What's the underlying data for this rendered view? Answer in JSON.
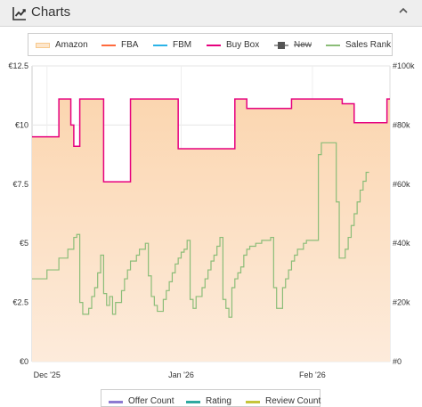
{
  "header": {
    "title": "Charts",
    "icon": "chart-line-icon",
    "collapse_icon": "chevron-up-icon"
  },
  "legend": [
    {
      "label": "Amazon",
      "color": "#f7c98d",
      "style": "area"
    },
    {
      "label": "FBA",
      "color": "#ff6a3d",
      "style": "line"
    },
    {
      "label": "FBM",
      "color": "#2bb3e8",
      "style": "line"
    },
    {
      "label": "Buy Box",
      "color": "#e6007e",
      "style": "line"
    },
    {
      "label": "New",
      "color": "#555555",
      "style": "square-line",
      "disabled": true
    },
    {
      "label": "Sales Rank",
      "color": "#8bbd78",
      "style": "line"
    }
  ],
  "bottom_legend": [
    {
      "label": "Offer Count",
      "color": "#8d7ad1"
    },
    {
      "label": "Rating",
      "color": "#2ea9a0"
    },
    {
      "label": "Review Count",
      "color": "#c5c53a"
    }
  ],
  "chart_data": {
    "type": "line",
    "x_tick_labels": [
      "Dec '25",
      "Jan '26",
      "Feb '26"
    ],
    "y_left": {
      "ticks": [
        "€0",
        "€2.5",
        "€5",
        "€7.5",
        "€10",
        "€12.5"
      ],
      "lim": [
        0,
        12.5
      ]
    },
    "y_right": {
      "ticks": [
        "#0",
        "#20k",
        "#40k",
        "#60k",
        "#80k",
        "#100k"
      ],
      "lim": [
        0,
        100000
      ]
    },
    "x_range_days": [
      0,
      120
    ],
    "series": [
      {
        "name": "Buy Box",
        "color": "#e6007e",
        "axis": "left",
        "fill": "#fde2c8",
        "points": [
          [
            0,
            9.5
          ],
          [
            9,
            9.5
          ],
          [
            9,
            11.1
          ],
          [
            13,
            11.1
          ],
          [
            13,
            10.0
          ],
          [
            14,
            10.0
          ],
          [
            14,
            9.1
          ],
          [
            16,
            9.1
          ],
          [
            16,
            11.1
          ],
          [
            24,
            11.1
          ],
          [
            24,
            7.6
          ],
          [
            33,
            7.6
          ],
          [
            33,
            11.1
          ],
          [
            49,
            11.1
          ],
          [
            49,
            9.0
          ],
          [
            68,
            9.0
          ],
          [
            68,
            11.1
          ],
          [
            72,
            11.1
          ],
          [
            72,
            10.7
          ],
          [
            87,
            10.7
          ],
          [
            87,
            11.1
          ],
          [
            104,
            11.1
          ],
          [
            104,
            10.9
          ],
          [
            108,
            10.9
          ],
          [
            108,
            10.1
          ],
          [
            119,
            10.1
          ],
          [
            119,
            11.1
          ],
          [
            120,
            11.1
          ]
        ]
      },
      {
        "name": "Sales Rank",
        "color": "#8bbd78",
        "axis": "right",
        "points": [
          [
            0,
            28000
          ],
          [
            5,
            28000
          ],
          [
            5,
            31000
          ],
          [
            9,
            31000
          ],
          [
            9,
            35000
          ],
          [
            12,
            35000
          ],
          [
            12,
            38000
          ],
          [
            14,
            38000
          ],
          [
            14,
            42000
          ],
          [
            15,
            42000
          ],
          [
            15,
            43000
          ],
          [
            16,
            43000
          ],
          [
            16,
            20000
          ],
          [
            17,
            20000
          ],
          [
            17,
            16000
          ],
          [
            19,
            16000
          ],
          [
            19,
            18000
          ],
          [
            20,
            18000
          ],
          [
            20,
            22000
          ],
          [
            21,
            22000
          ],
          [
            21,
            25000
          ],
          [
            22,
            25000
          ],
          [
            22,
            30000
          ],
          [
            23,
            30000
          ],
          [
            23,
            36000
          ],
          [
            24,
            36000
          ],
          [
            24,
            23000
          ],
          [
            25,
            23000
          ],
          [
            25,
            19000
          ],
          [
            26,
            19000
          ],
          [
            26,
            22000
          ],
          [
            27,
            22000
          ],
          [
            27,
            16000
          ],
          [
            28,
            16000
          ],
          [
            28,
            20000
          ],
          [
            30,
            20000
          ],
          [
            30,
            24000
          ],
          [
            31,
            24000
          ],
          [
            31,
            28000
          ],
          [
            32,
            28000
          ],
          [
            32,
            31000
          ],
          [
            33,
            31000
          ],
          [
            33,
            34000
          ],
          [
            35,
            34000
          ],
          [
            35,
            36000
          ],
          [
            36,
            36000
          ],
          [
            36,
            38000
          ],
          [
            38,
            38000
          ],
          [
            38,
            40000
          ],
          [
            39,
            40000
          ],
          [
            39,
            29000
          ],
          [
            40,
            29000
          ],
          [
            40,
            22000
          ],
          [
            41,
            22000
          ],
          [
            41,
            19000
          ],
          [
            42,
            19000
          ],
          [
            42,
            17000
          ],
          [
            44,
            17000
          ],
          [
            44,
            21000
          ],
          [
            45,
            21000
          ],
          [
            45,
            24000
          ],
          [
            46,
            24000
          ],
          [
            46,
            27000
          ],
          [
            47,
            27000
          ],
          [
            47,
            30000
          ],
          [
            48,
            30000
          ],
          [
            48,
            33000
          ],
          [
            49,
            33000
          ],
          [
            49,
            35000
          ],
          [
            50,
            35000
          ],
          [
            50,
            37000
          ],
          [
            51,
            37000
          ],
          [
            51,
            38000
          ],
          [
            52,
            38000
          ],
          [
            52,
            41000
          ],
          [
            53,
            41000
          ],
          [
            53,
            21000
          ],
          [
            54,
            21000
          ],
          [
            54,
            18000
          ],
          [
            55,
            18000
          ],
          [
            55,
            22000
          ],
          [
            57,
            22000
          ],
          [
            57,
            25000
          ],
          [
            58,
            25000
          ],
          [
            58,
            28000
          ],
          [
            59,
            28000
          ],
          [
            59,
            31000
          ],
          [
            60,
            31000
          ],
          [
            60,
            34000
          ],
          [
            61,
            34000
          ],
          [
            61,
            36000
          ],
          [
            62,
            36000
          ],
          [
            62,
            39000
          ],
          [
            63,
            39000
          ],
          [
            63,
            42000
          ],
          [
            64,
            42000
          ],
          [
            64,
            21000
          ],
          [
            65,
            21000
          ],
          [
            65,
            18000
          ],
          [
            66,
            18000
          ],
          [
            66,
            15000
          ],
          [
            67,
            15000
          ],
          [
            67,
            25000
          ],
          [
            68,
            25000
          ],
          [
            68,
            28000
          ],
          [
            69,
            28000
          ],
          [
            69,
            30000
          ],
          [
            70,
            30000
          ],
          [
            70,
            32000
          ],
          [
            71,
            32000
          ],
          [
            71,
            36000
          ],
          [
            72,
            36000
          ],
          [
            72,
            38000
          ],
          [
            73,
            38000
          ],
          [
            73,
            39000
          ],
          [
            75,
            39000
          ],
          [
            75,
            40000
          ],
          [
            77,
            40000
          ],
          [
            77,
            41000
          ],
          [
            80,
            41000
          ],
          [
            80,
            42000
          ],
          [
            81,
            42000
          ],
          [
            81,
            25000
          ],
          [
            82,
            25000
          ],
          [
            82,
            18000
          ],
          [
            84,
            18000
          ],
          [
            84,
            25000
          ],
          [
            85,
            25000
          ],
          [
            85,
            28000
          ],
          [
            86,
            28000
          ],
          [
            86,
            31000
          ],
          [
            87,
            31000
          ],
          [
            87,
            34000
          ],
          [
            88,
            34000
          ],
          [
            88,
            36000
          ],
          [
            89,
            36000
          ],
          [
            89,
            38000
          ],
          [
            91,
            38000
          ],
          [
            91,
            40000
          ],
          [
            92,
            40000
          ],
          [
            92,
            41000
          ],
          [
            96,
            41000
          ],
          [
            96,
            70000
          ],
          [
            97,
            70000
          ],
          [
            97,
            74000
          ],
          [
            102,
            74000
          ],
          [
            102,
            54000
          ],
          [
            103,
            54000
          ],
          [
            103,
            35000
          ],
          [
            105,
            35000
          ],
          [
            105,
            38000
          ],
          [
            106,
            38000
          ],
          [
            106,
            42000
          ],
          [
            107,
            42000
          ],
          [
            107,
            46000
          ],
          [
            108,
            46000
          ],
          [
            108,
            50000
          ],
          [
            109,
            50000
          ],
          [
            109,
            54000
          ],
          [
            110,
            54000
          ],
          [
            110,
            58000
          ],
          [
            111,
            58000
          ],
          [
            111,
            61000
          ],
          [
            112,
            61000
          ],
          [
            112,
            64000
          ],
          [
            113,
            64000
          ]
        ]
      }
    ]
  }
}
